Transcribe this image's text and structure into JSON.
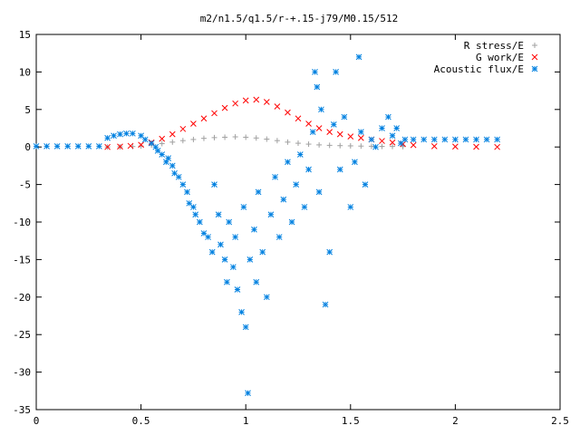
{
  "chart_data": {
    "type": "scatter",
    "title": "m2/n1.5/q1.5/r-+.15-j79/M0.15/512",
    "xlabel": "",
    "ylabel": "",
    "xlim": [
      0,
      2.5
    ],
    "ylim": [
      -35,
      15
    ],
    "x_ticks": [
      "0",
      "0.5",
      "1",
      "1.5",
      "2",
      "2.5"
    ],
    "y_ticks": [
      "15",
      "10",
      "5",
      "0",
      "-5",
      "-10",
      "-15",
      "-20",
      "-25",
      "-30",
      "-35"
    ],
    "grid": false,
    "legend_position": "top-right",
    "series": [
      {
        "name": "R stress/E",
        "marker": "plus",
        "color": "#a0a0a0",
        "points": [
          [
            0.34,
            0.0
          ],
          [
            0.4,
            0.02
          ],
          [
            0.46,
            0.06
          ],
          [
            0.5,
            0.12
          ],
          [
            0.55,
            0.25
          ],
          [
            0.6,
            0.45
          ],
          [
            0.65,
            0.65
          ],
          [
            0.7,
            0.85
          ],
          [
            0.75,
            1.0
          ],
          [
            0.8,
            1.15
          ],
          [
            0.85,
            1.25
          ],
          [
            0.9,
            1.3
          ],
          [
            0.95,
            1.35
          ],
          [
            1.0,
            1.3
          ],
          [
            1.05,
            1.2
          ],
          [
            1.1,
            1.05
          ],
          [
            1.15,
            0.85
          ],
          [
            1.2,
            0.65
          ],
          [
            1.25,
            0.5
          ],
          [
            1.3,
            0.38
          ],
          [
            1.35,
            0.28
          ],
          [
            1.4,
            0.22
          ],
          [
            1.45,
            0.18
          ],
          [
            1.5,
            0.15
          ],
          [
            1.55,
            0.12
          ],
          [
            1.6,
            0.1
          ],
          [
            1.65,
            0.08
          ],
          [
            1.7,
            0.07
          ],
          [
            1.75,
            0.05
          ]
        ]
      },
      {
        "name": "G work/E",
        "marker": "cross",
        "color": "#ff0000",
        "points": [
          [
            0.34,
            0.0
          ],
          [
            0.4,
            0.05
          ],
          [
            0.45,
            0.15
          ],
          [
            0.5,
            0.3
          ],
          [
            0.55,
            0.6
          ],
          [
            0.6,
            1.1
          ],
          [
            0.65,
            1.7
          ],
          [
            0.7,
            2.4
          ],
          [
            0.75,
            3.1
          ],
          [
            0.8,
            3.8
          ],
          [
            0.85,
            4.5
          ],
          [
            0.9,
            5.2
          ],
          [
            0.95,
            5.8
          ],
          [
            1.0,
            6.2
          ],
          [
            1.05,
            6.3
          ],
          [
            1.1,
            6.0
          ],
          [
            1.15,
            5.4
          ],
          [
            1.2,
            4.6
          ],
          [
            1.25,
            3.8
          ],
          [
            1.3,
            3.1
          ],
          [
            1.35,
            2.5
          ],
          [
            1.4,
            2.0
          ],
          [
            1.45,
            1.7
          ],
          [
            1.5,
            1.4
          ],
          [
            1.55,
            1.2
          ],
          [
            1.6,
            1.0
          ],
          [
            1.65,
            0.8
          ],
          [
            1.7,
            0.6
          ],
          [
            1.75,
            0.4
          ],
          [
            1.8,
            0.25
          ],
          [
            1.9,
            0.1
          ],
          [
            2.0,
            0.05
          ],
          [
            2.1,
            0.02
          ],
          [
            2.2,
            0.0
          ]
        ]
      },
      {
        "name": "Acoustic flux/E",
        "marker": "star",
        "color": "#0080e0",
        "points": [
          [
            0.0,
            0.1
          ],
          [
            0.05,
            0.1
          ],
          [
            0.1,
            0.1
          ],
          [
            0.15,
            0.1
          ],
          [
            0.2,
            0.1
          ],
          [
            0.25,
            0.1
          ],
          [
            0.3,
            0.1
          ],
          [
            0.34,
            1.2
          ],
          [
            0.37,
            1.5
          ],
          [
            0.4,
            1.7
          ],
          [
            0.43,
            1.8
          ],
          [
            0.46,
            1.8
          ],
          [
            0.5,
            1.5
          ],
          [
            0.52,
            1.0
          ],
          [
            0.55,
            0.5
          ],
          [
            0.57,
            0.0
          ],
          [
            0.58,
            -0.5
          ],
          [
            0.6,
            -1.0
          ],
          [
            0.62,
            -2.0
          ],
          [
            0.63,
            -1.5
          ],
          [
            0.65,
            -2.5
          ],
          [
            0.66,
            -3.5
          ],
          [
            0.68,
            -4.0
          ],
          [
            0.7,
            -5.0
          ],
          [
            0.72,
            -6.0
          ],
          [
            0.73,
            -7.5
          ],
          [
            0.75,
            -8.0
          ],
          [
            0.76,
            -9.0
          ],
          [
            0.78,
            -10.0
          ],
          [
            0.8,
            -11.5
          ],
          [
            0.82,
            -12.0
          ],
          [
            0.84,
            -14.0
          ],
          [
            0.85,
            -5.0
          ],
          [
            0.87,
            -9.0
          ],
          [
            0.88,
            -13.0
          ],
          [
            0.9,
            -15.0
          ],
          [
            0.91,
            -18.0
          ],
          [
            0.92,
            -10.0
          ],
          [
            0.94,
            -16.0
          ],
          [
            0.95,
            -12.0
          ],
          [
            0.96,
            -19.0
          ],
          [
            0.98,
            -22.0
          ],
          [
            0.99,
            -8.0
          ],
          [
            1.0,
            -24.0
          ],
          [
            1.01,
            -32.8
          ],
          [
            1.02,
            -15.0
          ],
          [
            1.04,
            -11.0
          ],
          [
            1.05,
            -18.0
          ],
          [
            1.06,
            -6.0
          ],
          [
            1.08,
            -14.0
          ],
          [
            1.1,
            -20.0
          ],
          [
            1.12,
            -9.0
          ],
          [
            1.14,
            -4.0
          ],
          [
            1.16,
            -12.0
          ],
          [
            1.18,
            -7.0
          ],
          [
            1.2,
            -2.0
          ],
          [
            1.22,
            -10.0
          ],
          [
            1.24,
            -5.0
          ],
          [
            1.26,
            -1.0
          ],
          [
            1.28,
            -8.0
          ],
          [
            1.3,
            -3.0
          ],
          [
            1.32,
            2.0
          ],
          [
            1.33,
            10.0
          ],
          [
            1.34,
            8.0
          ],
          [
            1.35,
            -6.0
          ],
          [
            1.36,
            5.0
          ],
          [
            1.38,
            -21.0
          ],
          [
            1.4,
            -14.0
          ],
          [
            1.42,
            3.0
          ],
          [
            1.43,
            10.0
          ],
          [
            1.45,
            -3.0
          ],
          [
            1.47,
            4.0
          ],
          [
            1.5,
            -8.0
          ],
          [
            1.52,
            -2.0
          ],
          [
            1.54,
            12.0
          ],
          [
            1.55,
            2.0
          ],
          [
            1.57,
            -5.0
          ],
          [
            1.6,
            1.0
          ],
          [
            1.62,
            0.0
          ],
          [
            1.65,
            2.5
          ],
          [
            1.68,
            4.0
          ],
          [
            1.7,
            1.5
          ],
          [
            1.72,
            2.5
          ],
          [
            1.74,
            0.5
          ],
          [
            1.76,
            1.0
          ],
          [
            1.8,
            1.0
          ],
          [
            1.85,
            1.0
          ],
          [
            1.9,
            1.0
          ],
          [
            1.95,
            1.0
          ],
          [
            2.0,
            1.0
          ],
          [
            2.05,
            1.0
          ],
          [
            2.1,
            1.0
          ],
          [
            2.15,
            1.0
          ],
          [
            2.2,
            1.0
          ]
        ]
      }
    ]
  }
}
